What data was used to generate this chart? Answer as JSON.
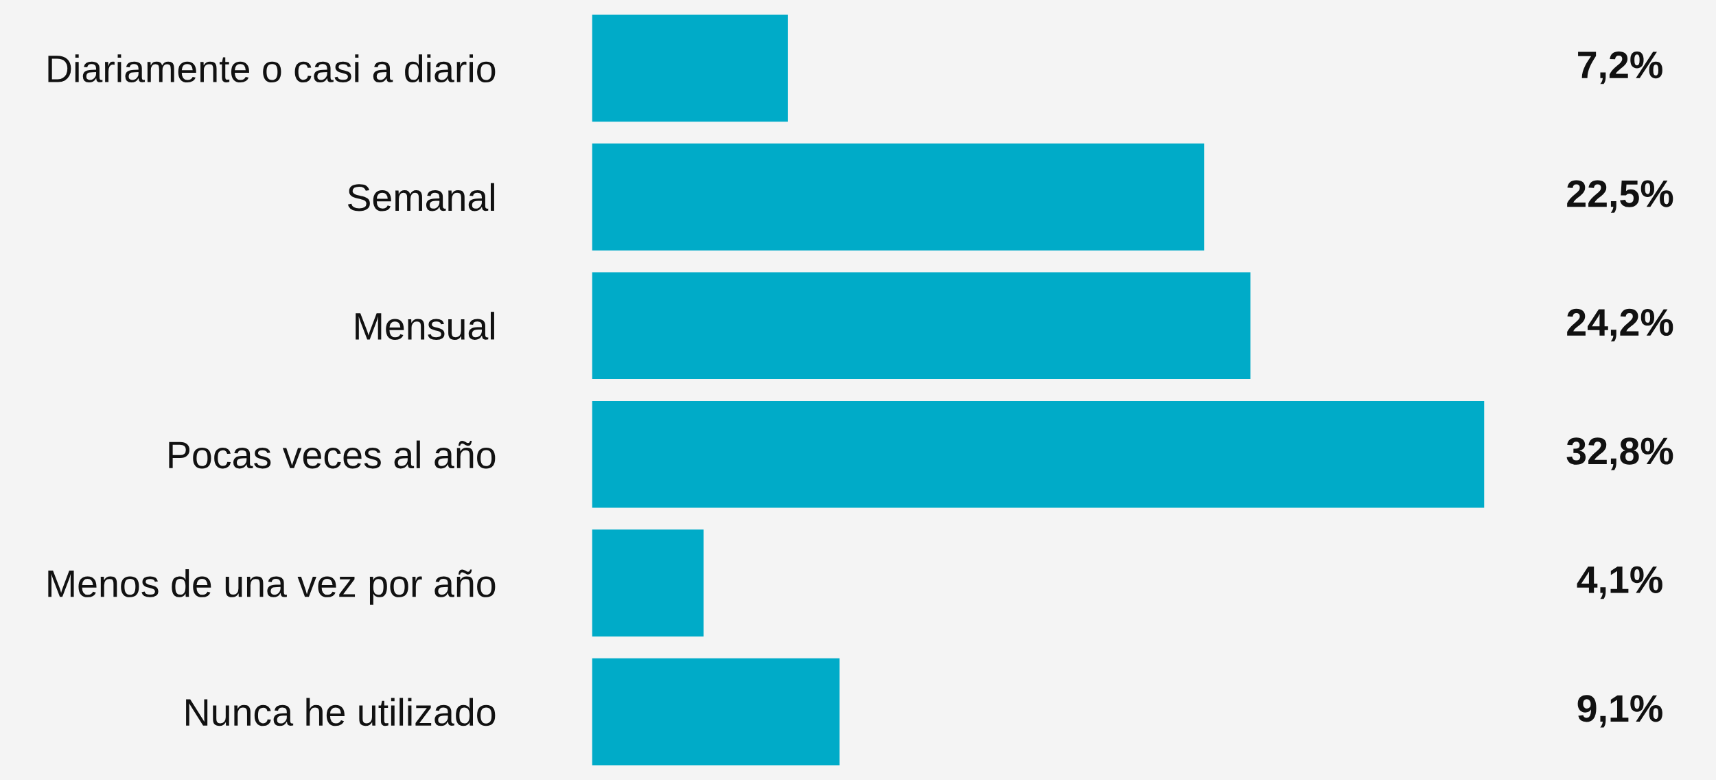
{
  "chart_data": {
    "type": "bar",
    "orientation": "horizontal",
    "categories": [
      "Diariamente o casi a diario",
      "Semanal",
      "Mensual",
      "Pocas veces al año",
      "Menos de una vez por año",
      "Nunca he utilizado"
    ],
    "values": [
      7.2,
      22.5,
      24.2,
      32.8,
      4.1,
      9.1
    ],
    "value_labels": [
      "7,2%",
      "22,5%",
      "24,2%",
      "32,8%",
      "4,1%",
      "9,1%"
    ],
    "color": "#00abc8",
    "grid": false,
    "legend": false
  }
}
